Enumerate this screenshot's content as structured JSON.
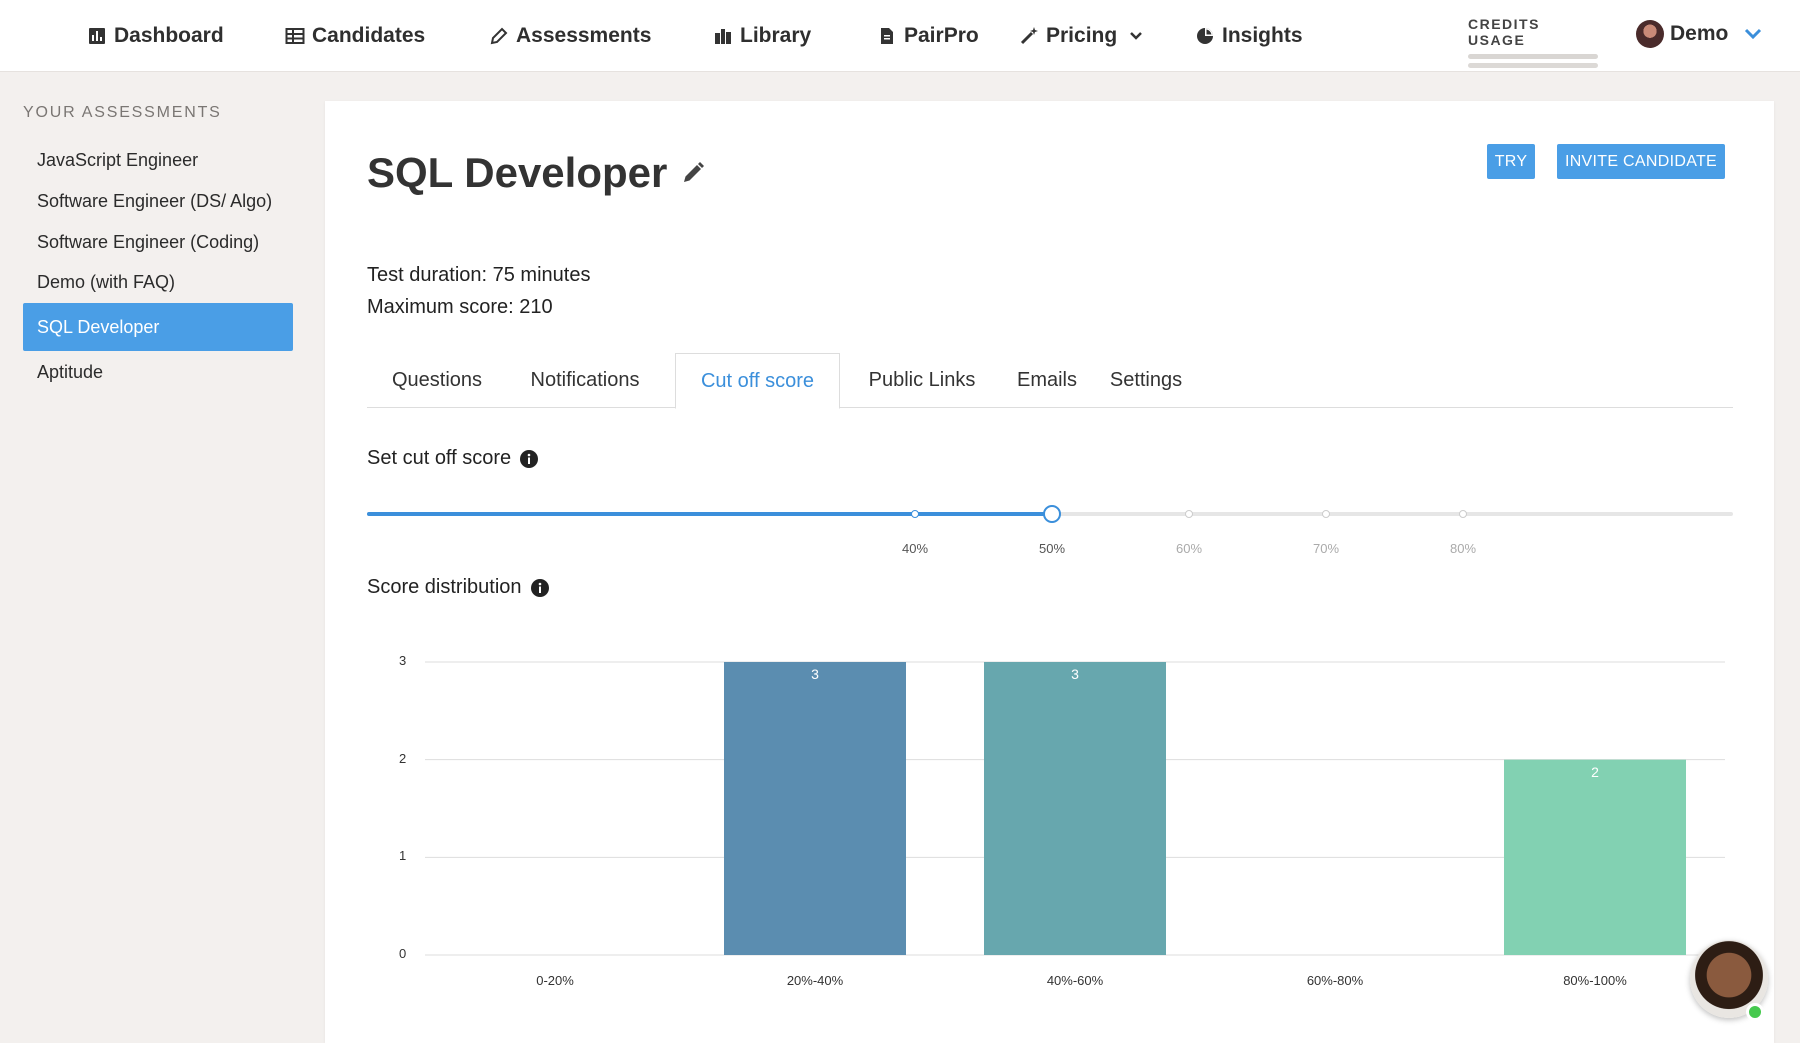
{
  "nav": {
    "items": [
      {
        "label": "Dashboard",
        "icon": "bar-chart-icon"
      },
      {
        "label": "Candidates",
        "icon": "table-icon"
      },
      {
        "label": "Assessments",
        "icon": "pencil-icon"
      },
      {
        "label": "Library",
        "icon": "books-icon"
      },
      {
        "label": "PairPro",
        "icon": "document-icon"
      },
      {
        "label": "Pricing",
        "icon": "magic-wand-icon"
      },
      {
        "label": "Insights",
        "icon": "pie-chart-icon"
      }
    ],
    "credits_label": "CREDITS USAGE",
    "user_name": "Demo"
  },
  "sidebar": {
    "title": "YOUR ASSESSMENTS",
    "items": [
      {
        "label": "JavaScript Engineer"
      },
      {
        "label": "Software Engineer (DS/ Algo)"
      },
      {
        "label": "Software Engineer (Coding)"
      },
      {
        "label": "Demo (with FAQ)"
      },
      {
        "label": "SQL Developer",
        "active": true
      },
      {
        "label": "Aptitude"
      }
    ]
  },
  "assessment": {
    "title": "SQL Developer",
    "try_label": "TRY",
    "invite_label": "INVITE CANDIDATE",
    "duration": "Test duration: 75 minutes",
    "max_score": "Maximum score: 210"
  },
  "tabs": [
    {
      "label": "Questions"
    },
    {
      "label": "Notifications"
    },
    {
      "label": "Cut off score",
      "active": true
    },
    {
      "label": "Public Links"
    },
    {
      "label": "Emails"
    },
    {
      "label": "Settings"
    }
  ],
  "cutoff": {
    "label": "Set cut off score",
    "value_percent": 50,
    "marks": [
      "40%",
      "50%",
      "60%",
      "70%",
      "80%"
    ]
  },
  "distribution_label": "Score distribution",
  "colors": {
    "accent": "#4a9ee6",
    "bar_colors": [
      "#5b8db0",
      "#5b8db0",
      "#67a7ae",
      "#73bfae",
      "#82d1b2"
    ]
  },
  "chart_data": {
    "type": "bar",
    "categories": [
      "0-20%",
      "20%-40%",
      "40%-60%",
      "60%-80%",
      "80%-100%"
    ],
    "values": [
      0,
      3,
      3,
      0,
      2
    ],
    "ylim": [
      0,
      3
    ],
    "yticks": [
      "0",
      "1",
      "2",
      "3"
    ],
    "title": "",
    "xlabel": "",
    "ylabel": "",
    "grid": true
  }
}
